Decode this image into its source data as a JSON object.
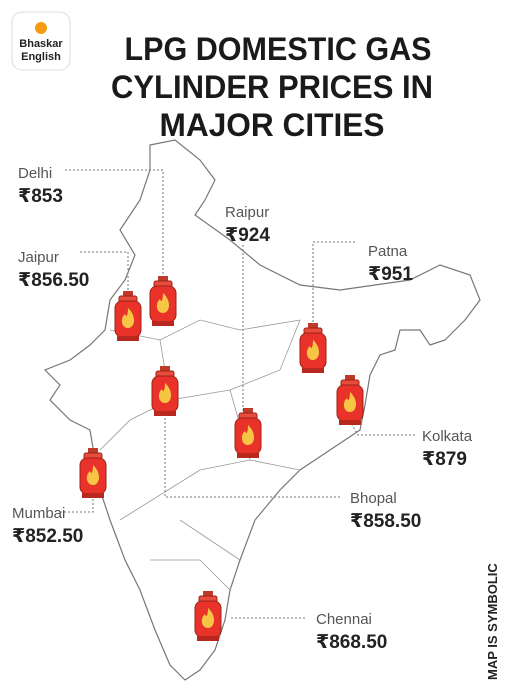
{
  "brand": {
    "line1": "Bhaskar",
    "line2": "English"
  },
  "title": [
    "LPG DOMESTIC GAS",
    "CYLINDER PRICES IN",
    "MAJOR CITIES"
  ],
  "cities": [
    {
      "name": "Delhi",
      "price": "₹853"
    },
    {
      "name": "Jaipur",
      "price": "₹856.50"
    },
    {
      "name": "Raipur",
      "price": "₹924"
    },
    {
      "name": "Patna",
      "price": "₹951"
    },
    {
      "name": "Kolkata",
      "price": "₹879"
    },
    {
      "name": "Mumbai",
      "price": "₹852.50"
    },
    {
      "name": "Bhopal",
      "price": "₹858.50"
    },
    {
      "name": "Chennai",
      "price": "₹868.50"
    }
  ],
  "note": "MAP IS SYMBOLIC"
}
